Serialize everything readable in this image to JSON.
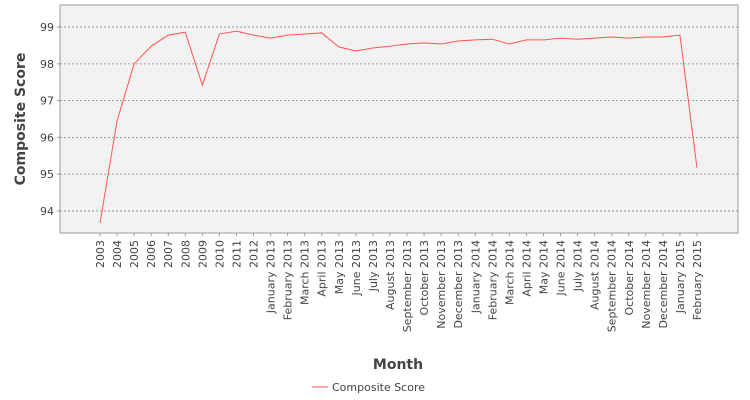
{
  "chart_data": {
    "type": "line",
    "x_label": "Month",
    "y_label": "Composite Score",
    "categories": [
      "2003",
      "2004",
      "2005",
      "2006",
      "2007",
      "2008",
      "2009",
      "2010",
      "2011",
      "2012",
      "January 2013",
      "February 2013",
      "March 2013",
      "April 2013",
      "May 2013",
      "June 2013",
      "July 2013",
      "August 2013",
      "September 2013",
      "October 2013",
      "November 2013",
      "December 2013",
      "January 2014",
      "February 2014",
      "March 2014",
      "April 2014",
      "May 2014",
      "June 2014",
      "July 2014",
      "August 2014",
      "September 2014",
      "October 2014",
      "November 2014",
      "December 2014",
      "January 2015",
      "February 2015"
    ],
    "series": [
      {
        "name": "Composite Score",
        "color": "#ff5555",
        "values": [
          93.67,
          96.45,
          98.0,
          98.48,
          98.78,
          98.86,
          97.42,
          98.81,
          98.89,
          98.78,
          98.7,
          98.78,
          98.81,
          98.84,
          98.46,
          98.35,
          98.43,
          98.48,
          98.54,
          98.57,
          98.54,
          98.62,
          98.65,
          98.67,
          98.54,
          98.65,
          98.65,
          98.7,
          98.67,
          98.7,
          98.73,
          98.7,
          98.73,
          98.73,
          98.78,
          95.17
        ]
      }
    ],
    "ylim": [
      93.4,
      99.6
    ],
    "yticks": [
      94,
      95,
      96,
      97,
      98,
      99
    ],
    "grid": true,
    "legend": "bottom"
  }
}
